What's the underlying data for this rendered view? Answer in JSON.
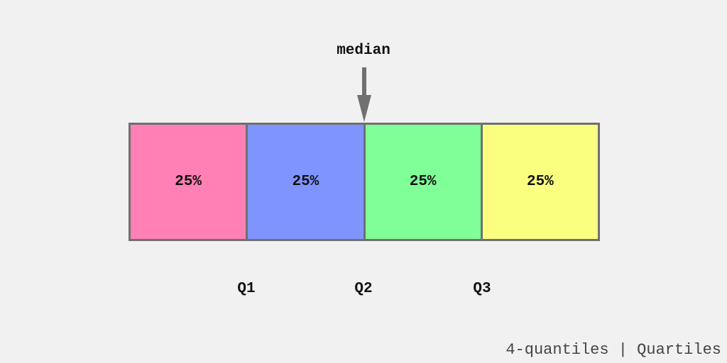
{
  "annotation": {
    "label": "median",
    "arrow_color": "#707070"
  },
  "segments": [
    {
      "label": "25%",
      "color": "#ff80b4"
    },
    {
      "label": "25%",
      "color": "#8094ff"
    },
    {
      "label": "25%",
      "color": "#80ff98"
    },
    {
      "label": "25%",
      "color": "#faff80"
    }
  ],
  "quartiles": [
    "Q1",
    "Q2",
    "Q3"
  ],
  "caption": "4-quantiles | Quartiles",
  "colors": {
    "background": "#f1f1f1",
    "border": "#707070",
    "text": "#111111",
    "caption": "#444444"
  }
}
